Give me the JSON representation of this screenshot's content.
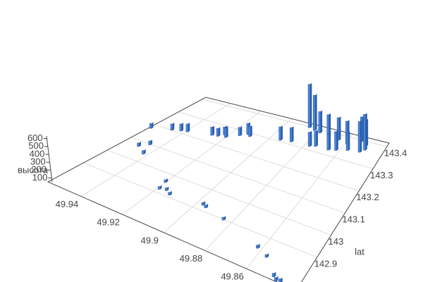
{
  "chart_data": {
    "type": "bar3d",
    "ylabel": "lat",
    "zlabel": "высота",
    "color": "#4a86d8",
    "grid": true,
    "xlim": [
      49.836,
      49.956
    ],
    "ylim": [
      142.75,
      143.416
    ],
    "zlim": [
      50,
      650
    ],
    "xticks": [
      49.86,
      49.88,
      49.9,
      49.92,
      49.94
    ],
    "yticks": [
      142.9,
      143,
      143.1,
      143.2,
      143.3,
      143.4
    ],
    "zticks": [
      100,
      200,
      300,
      400,
      500,
      600
    ],
    "x": [
      49.955,
      49.946,
      49.942,
      49.939,
      49.927,
      49.924,
      49.922,
      49.92,
      49.915,
      49.912,
      49.91,
      49.894,
      49.888,
      49.877,
      49.874,
      49.866,
      49.862,
      49.856,
      49.849,
      49.847,
      49.886,
      49.882,
      49.878,
      49.872,
      49.865,
      49.859,
      49.852,
      49.848,
      49.948,
      49.945,
      49.942,
      49.92,
      49.919,
      49.916,
      49.913,
      49.897,
      49.895,
      49.884,
      49.862,
      49.856,
      49.848,
      49.846,
      49.844
    ],
    "y": [
      143.176,
      143.2,
      143.21,
      143.216,
      143.236,
      143.24,
      143.256,
      143.246,
      143.273,
      143.29,
      143.283,
      143.306,
      143.313,
      143.316,
      143.323,
      143.323,
      143.33,
      143.343,
      143.349,
      143.363,
      143.396,
      143.39,
      143.385,
      143.38,
      143.375,
      143.37,
      143.395,
      143.38,
      143.07,
      143.096,
      143.043,
      142.956,
      142.917,
      142.923,
      142.91,
      142.923,
      142.917,
      142.897,
      142.843,
      142.823,
      142.763,
      142.75,
      142.752
    ],
    "z": [
      112,
      130,
      140,
      150,
      155,
      150,
      150,
      175,
      155,
      190,
      175,
      220,
      230,
      230,
      245,
      255,
      290,
      275,
      440,
      505,
      600,
      495,
      320,
      325,
      335,
      335,
      360,
      380,
      95,
      100,
      95,
      85,
      85,
      85,
      85,
      85,
      85,
      85,
      90,
      85,
      95,
      100,
      100
    ]
  }
}
